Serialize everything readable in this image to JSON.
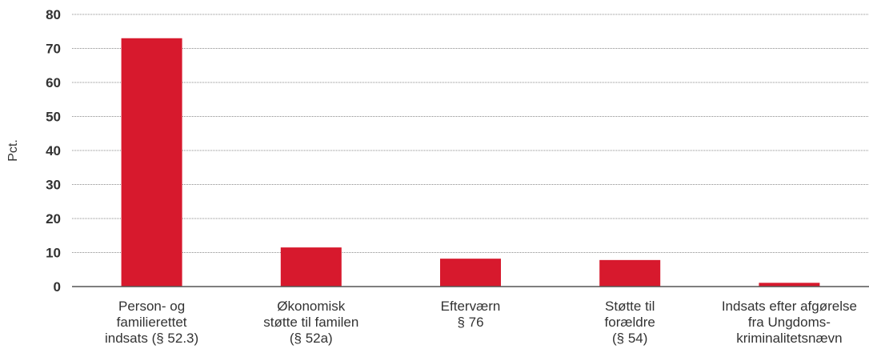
{
  "chart_data": {
    "type": "bar",
    "title": "",
    "xlabel": "",
    "ylabel": "Pct.",
    "ylim": [
      0,
      80
    ],
    "yticks": [
      0,
      10,
      20,
      30,
      40,
      50,
      60,
      70,
      80
    ],
    "grid": true,
    "categories": [
      [
        "Person- og",
        "familierettet",
        "indsats (§ 52.3)"
      ],
      [
        "Økonomisk",
        "støtte til familen",
        "(§ 52a)"
      ],
      [
        "Efterværn",
        "§ 76"
      ],
      [
        "Støtte til",
        "forældre",
        "(§ 54)"
      ],
      [
        "Indsats efter afgørelse",
        "fra Ungdoms-",
        "kriminalitetsnævn"
      ]
    ],
    "values": [
      73,
      11.5,
      8.2,
      7.8,
      1.1
    ],
    "colors": {
      "bar": "#d7192d",
      "grid": "#8c8c8c",
      "axis": "#555555"
    }
  }
}
